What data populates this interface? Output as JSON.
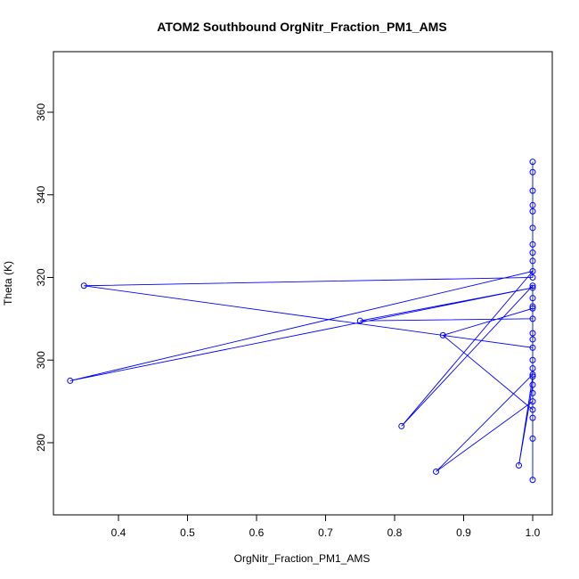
{
  "chart_data": {
    "type": "line",
    "title": "ATOM2 Southbound OrgNitr_Fraction_PM1_AMS",
    "xlabel": "OrgNitr_Fraction_PM1_AMS",
    "ylabel": "Theta (K)",
    "x": [
      1.0,
      1.0,
      1.0,
      1.0,
      1.0,
      1.0,
      1.0,
      1.0,
      1.0,
      1.0,
      0.35,
      1.0,
      1.0,
      1.0,
      1.0,
      0.86,
      1.0,
      1.0,
      0.87,
      1.0,
      1.0,
      0.75,
      1.0,
      0.33,
      1.0,
      0.81,
      1.0,
      1.0,
      1.0,
      1.0,
      1.0,
      1.0,
      0.98,
      1.0,
      1.0,
      1.0,
      1.0,
      1.0
    ],
    "values": [
      348,
      345.5,
      341,
      337.5,
      336,
      332,
      328,
      326,
      324,
      320,
      318,
      303,
      300,
      298,
      296.5,
      273,
      290,
      288,
      306,
      312.5,
      310,
      309.5,
      317.5,
      295,
      321.5,
      284,
      318,
      315,
      313,
      306.5,
      305,
      294,
      274.5,
      296,
      292,
      286,
      281,
      271
    ],
    "color": "#0000ff",
    "xlim": [
      0.3058,
      1.0284
    ],
    "xticks": [
      0.4,
      0.5,
      0.6,
      0.7,
      0.8,
      0.9,
      {
        "value": 1.0,
        "label": "1.0"
      }
    ],
    "ylim": [
      262.53,
      374.66
    ],
    "yticks": [
      280,
      300,
      320,
      340,
      360
    ]
  }
}
